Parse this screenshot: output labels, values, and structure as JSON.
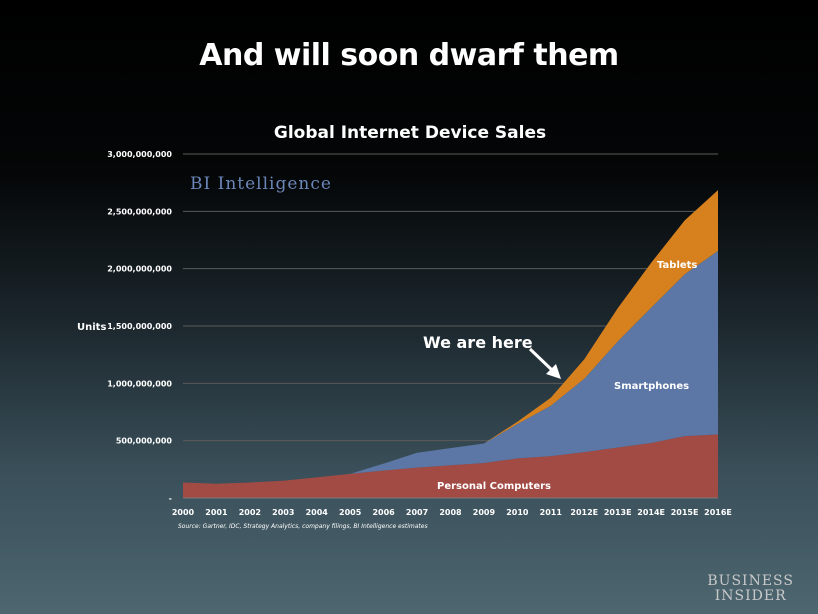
{
  "slide": {
    "title": "And will soon dwarf them",
    "logo": {
      "line1": "BUSINESS",
      "line2": "INSIDER"
    }
  },
  "colors": {
    "pc": "#a24b45",
    "smartphones": "#5c77a6",
    "tablets": "#d7801e",
    "grid": "#5a5a5a"
  },
  "chart_data": {
    "type": "area",
    "stacked": true,
    "title": "Global Internet Device Sales",
    "ylabel": "Units",
    "xlabel": "",
    "categories": [
      "2000",
      "2001",
      "2002",
      "2003",
      "2004",
      "2005",
      "2006",
      "2007",
      "2008",
      "2009",
      "2010",
      "2011",
      "2012E",
      "2013E",
      "2014E",
      "2015E",
      "2016E"
    ],
    "yticks": [
      {
        "value": 0,
        "label": "-"
      },
      {
        "value": 500000000,
        "label": "500,000,000"
      },
      {
        "value": 1000000000,
        "label": "1,000,000,000"
      },
      {
        "value": 1500000000,
        "label": "1,500,000,000"
      },
      {
        "value": 2000000000,
        "label": "2,000,000,000"
      },
      {
        "value": 2500000000,
        "label": "2,500,000,000"
      },
      {
        "value": 3000000000,
        "label": "3,000,000,000"
      }
    ],
    "ylim": [
      0,
      3000000000
    ],
    "grid": true,
    "series": [
      {
        "name": "Personal Computers",
        "color_key": "pc",
        "values": [
          135000000,
          125000000,
          135000000,
          150000000,
          180000000,
          210000000,
          240000000,
          265000000,
          285000000,
          305000000,
          345000000,
          365000000,
          400000000,
          440000000,
          480000000,
          540000000,
          555000000
        ]
      },
      {
        "name": "Smartphones",
        "color_key": "smartphones",
        "values": [
          0,
          0,
          0,
          0,
          0,
          0,
          60000000,
          130000000,
          150000000,
          170000000,
          300000000,
          440000000,
          640000000,
          925000000,
          1180000000,
          1410000000,
          1600000000
        ]
      },
      {
        "name": "Tablets",
        "color_key": "tablets",
        "values": [
          0,
          0,
          0,
          0,
          0,
          0,
          0,
          0,
          0,
          0,
          20000000,
          70000000,
          170000000,
          290000000,
          390000000,
          470000000,
          530000000
        ]
      }
    ],
    "watermark": "BI Intelligence",
    "annotations": [
      {
        "text": "We are here",
        "x": "2011",
        "y": 1030000000
      }
    ],
    "source": "Source: Gartner, IDC, Strategy Analytics, company filings, BI Intelligence estimates"
  }
}
